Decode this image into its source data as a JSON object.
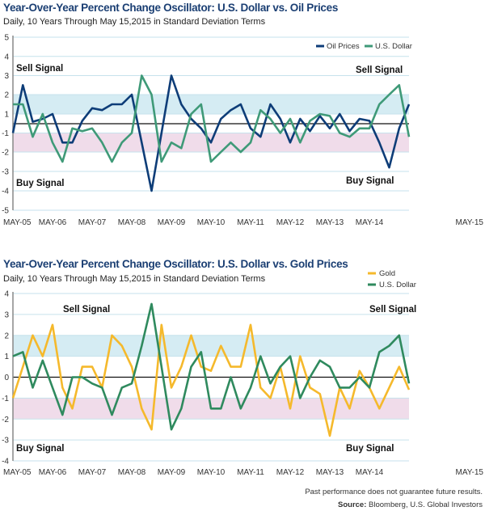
{
  "chart_data": [
    {
      "type": "line",
      "title": "Year-Over-Year Percent Change Oscillator: U.S. Dollar vs. Oil Prices",
      "subtitle": "Daily, 10 Years Through May 15,2015 in Standard Deviation Terms",
      "y_tick_labels": [
        "5",
        "4",
        "3",
        "2",
        "1",
        "-1",
        "-2",
        "-3",
        "-4",
        "-5"
      ],
      "ylim": [
        -5,
        5
      ],
      "x_tick_labels": [
        "MAY-05",
        "MAY-06",
        "MAY-07",
        "MAY-08",
        "MAY-09",
        "MAY-10",
        "MAY-11",
        "MAY-12",
        "MAY-13",
        "MAY-14",
        "MAY-15"
      ],
      "bands": [
        {
          "from": 1,
          "to": 2,
          "color": "#d5ecf3"
        },
        {
          "from": -1,
          "to": -2,
          "color": "#f0dcea"
        }
      ],
      "grid": true,
      "legend": "top-right",
      "annotations": [
        {
          "text": "Sell Signal",
          "position": "top-left"
        },
        {
          "text": "Buy Signal",
          "position": "bottom-left"
        },
        {
          "text": "Sell Signal",
          "position": "top-right"
        },
        {
          "text": "Buy Signal",
          "position": "bottom-right"
        }
      ],
      "x": [
        "2005-05",
        "2005-08",
        "2005-11",
        "2006-02",
        "2006-05",
        "2006-08",
        "2006-11",
        "2007-02",
        "2007-05",
        "2007-08",
        "2007-11",
        "2008-02",
        "2008-05",
        "2008-08",
        "2008-11",
        "2009-02",
        "2009-05",
        "2009-08",
        "2009-11",
        "2010-02",
        "2010-05",
        "2010-08",
        "2010-11",
        "2011-02",
        "2011-05",
        "2011-08",
        "2011-11",
        "2012-02",
        "2012-05",
        "2012-08",
        "2012-11",
        "2013-02",
        "2013-05",
        "2013-08",
        "2013-11",
        "2014-02",
        "2014-05",
        "2014-08",
        "2014-11",
        "2015-02",
        "2015-05"
      ],
      "series": [
        {
          "name": "Oil Prices",
          "color": "#0e3d78",
          "values": [
            -1.0,
            2.5,
            0.2,
            0.5,
            1.0,
            -1.5,
            -1.5,
            0.3,
            1.3,
            1.2,
            1.5,
            1.5,
            2.0,
            -1.5,
            -4.0,
            -1.0,
            3.0,
            1.5,
            0.5,
            -0.5,
            -1.5,
            0.5,
            1.2,
            1.5,
            -0.5,
            -1.2,
            1.5,
            0.5,
            -1.5,
            0.5,
            -0.8,
            0.8,
            -0.5,
            1.0,
            -0.8,
            0.5,
            0.3,
            -1.5,
            -2.8,
            -0.5,
            1.5
          ]
        },
        {
          "name": "U.S. Dollar",
          "color": "#3f9a78",
          "values": [
            1.5,
            1.5,
            -1.2,
            1.0,
            -1.5,
            -2.5,
            -0.5,
            -0.8,
            -0.5,
            -1.5,
            -2.5,
            -1.5,
            -1.0,
            3.0,
            2.0,
            -2.5,
            -1.5,
            -1.8,
            1.0,
            1.5,
            -2.5,
            -2.0,
            -1.5,
            -2.0,
            -1.5,
            1.2,
            0.5,
            -1.0,
            0.5,
            -1.5,
            0.3,
            1.0,
            0.8,
            -1.0,
            -1.2,
            -0.5,
            -0.5,
            1.5,
            2.0,
            2.5,
            -1.2
          ]
        }
      ]
    },
    {
      "type": "line",
      "title": "Year-Over-Year Percent Change Oscillator: U.S. Dollar vs. Gold Prices",
      "subtitle": "Daily, 10 Years Through May 15,2015 in Standard Deviation Terms",
      "y_tick_labels": [
        "4",
        "3",
        "2",
        "1",
        "0",
        "-1",
        "-2",
        "-3",
        "-4"
      ],
      "ylim": [
        -4,
        4
      ],
      "x_tick_labels": [
        "MAY-05",
        "MAY-06",
        "MAY-07",
        "MAY-08",
        "MAY-09",
        "MAY-10",
        "MAY-11",
        "MAY-12",
        "MAY-13",
        "MAY-14",
        "MAY-15"
      ],
      "bands": [
        {
          "from": 1,
          "to": 2,
          "color": "#d5ecf3"
        },
        {
          "from": -1,
          "to": -2,
          "color": "#f0dcea"
        }
      ],
      "grid": true,
      "legend": "top-right",
      "annotations": [
        {
          "text": "Sell Signal",
          "position": "top-left"
        },
        {
          "text": "Buy Signal",
          "position": "bottom-left"
        },
        {
          "text": "Sell Signal",
          "position": "top-right"
        },
        {
          "text": "Buy Signal",
          "position": "bottom-right"
        }
      ],
      "x": [
        "2005-05",
        "2005-08",
        "2005-11",
        "2006-02",
        "2006-05",
        "2006-08",
        "2006-11",
        "2007-02",
        "2007-05",
        "2007-08",
        "2007-11",
        "2008-02",
        "2008-05",
        "2008-08",
        "2008-11",
        "2009-02",
        "2009-05",
        "2009-08",
        "2009-11",
        "2010-02",
        "2010-05",
        "2010-08",
        "2010-11",
        "2011-02",
        "2011-05",
        "2011-08",
        "2011-11",
        "2012-02",
        "2012-05",
        "2012-08",
        "2012-11",
        "2013-02",
        "2013-05",
        "2013-08",
        "2013-11",
        "2014-02",
        "2014-05",
        "2014-08",
        "2014-11",
        "2015-02",
        "2015-05"
      ],
      "series": [
        {
          "name": "Gold",
          "color": "#f5b92c",
          "values": [
            -1.0,
            0.5,
            2.0,
            1.0,
            2.5,
            -0.5,
            -1.5,
            0.5,
            0.5,
            -0.5,
            2.0,
            1.5,
            0.5,
            -1.5,
            -2.5,
            2.5,
            -0.5,
            0.5,
            2.0,
            0.5,
            0.3,
            1.5,
            0.5,
            0.5,
            2.5,
            -0.5,
            -1.0,
            0.5,
            -1.5,
            1.0,
            -0.5,
            -0.8,
            -2.8,
            -0.5,
            -1.5,
            0.3,
            -0.5,
            -1.5,
            -0.5,
            0.5,
            -0.6
          ]
        },
        {
          "name": "U.S. Dollar",
          "color": "#2f8a5e",
          "values": [
            1.0,
            1.2,
            -0.5,
            0.8,
            -0.5,
            -1.8,
            0.0,
            0.0,
            -0.3,
            -0.5,
            -1.8,
            -0.5,
            -0.3,
            1.5,
            3.5,
            0.5,
            -2.5,
            -1.5,
            0.5,
            1.2,
            -1.5,
            -1.5,
            0.0,
            -1.5,
            -0.5,
            1.0,
            -0.3,
            0.5,
            1.0,
            -1.0,
            0.0,
            0.8,
            0.5,
            -0.5,
            -0.5,
            0.0,
            -0.5,
            1.2,
            1.5,
            2.0,
            -0.3
          ]
        }
      ]
    }
  ],
  "footer": {
    "disclaimer": "Past performance does not guarantee future results.",
    "source_label": "Source:",
    "source_text": "Bloomberg, U.S. Global Investors"
  }
}
